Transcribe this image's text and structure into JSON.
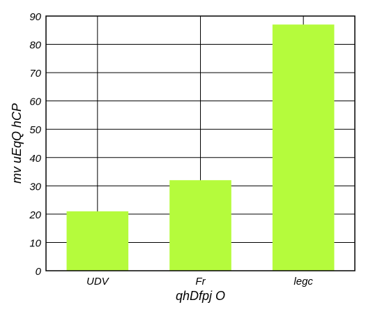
{
  "chart_data": {
    "type": "bar",
    "categories": [
      "UDV",
      "Fr",
      "legc"
    ],
    "values": [
      21,
      32,
      87
    ],
    "xlabel": "qhDfpj O",
    "ylabel": "mv  uEqQ hCP",
    "ylim": [
      0,
      90
    ],
    "yticks": [
      0,
      10,
      20,
      30,
      40,
      50,
      60,
      70,
      80,
      90
    ],
    "grid": true,
    "bar_color": "#b5fb3c",
    "axis_color": "#000000"
  }
}
